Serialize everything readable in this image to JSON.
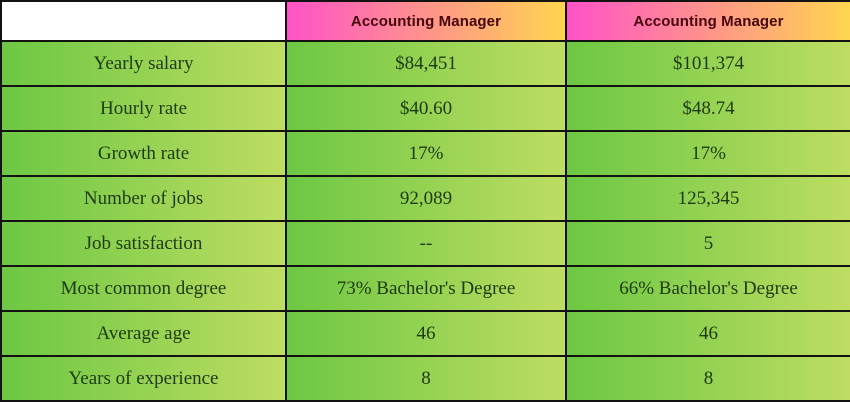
{
  "table": {
    "header": {
      "corner": "",
      "columns": [
        "Accounting Manager",
        "Accounting Manager"
      ]
    },
    "rows": [
      {
        "label": "Yearly salary",
        "values": [
          "$84,451",
          "$101,374"
        ]
      },
      {
        "label": "Hourly rate",
        "values": [
          "$40.60",
          "$48.74"
        ]
      },
      {
        "label": "Growth rate",
        "values": [
          "17%",
          "17%"
        ]
      },
      {
        "label": "Number of jobs",
        "values": [
          "92,089",
          "125,345"
        ]
      },
      {
        "label": "Job satisfaction",
        "values": [
          "--",
          "5"
        ]
      },
      {
        "label": "Most common degree",
        "values": [
          "73% Bachelor's Degree",
          "66% Bachelor's Degree"
        ]
      },
      {
        "label": "Average age",
        "values": [
          "46",
          "46"
        ]
      },
      {
        "label": "Years of experience",
        "values": [
          "8",
          "8"
        ]
      }
    ]
  },
  "colors": {
    "header_gradient_start": "#ff52c8",
    "header_gradient_end": "#ffd54f",
    "header_text": "#46060e",
    "cell_gradient_start": "#6cc843",
    "cell_gradient_end": "#bedd62",
    "cell_text": "#1e3a14",
    "border": "#121212"
  },
  "chart_data": {
    "type": "table",
    "columns": [
      "",
      "Accounting Manager",
      "Accounting Manager"
    ],
    "rows": [
      [
        "Yearly salary",
        "$84,451",
        "$101,374"
      ],
      [
        "Hourly rate",
        "$40.60",
        "$48.74"
      ],
      [
        "Growth rate",
        "17%",
        "17%"
      ],
      [
        "Number of jobs",
        "92,089",
        "125,345"
      ],
      [
        "Job satisfaction",
        "--",
        "5"
      ],
      [
        "Most common degree",
        "73% Bachelor's Degree",
        "66% Bachelor's Degree"
      ],
      [
        "Average age",
        "46",
        "46"
      ],
      [
        "Years of experience",
        "8",
        "8"
      ]
    ]
  }
}
